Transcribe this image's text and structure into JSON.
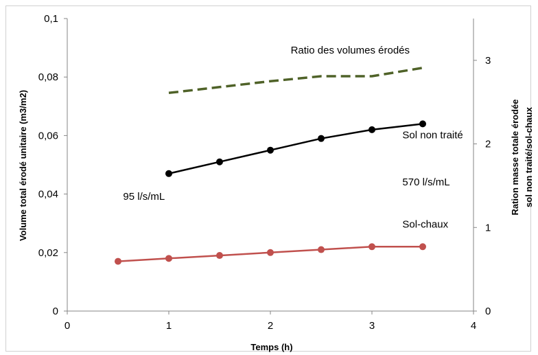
{
  "chart_data": {
    "type": "line",
    "xlabel": "Temps (h)",
    "ylabel": "Volume total érodé unitaire (m3/m2)",
    "y2label_line1": "Ration masse totale érodée",
    "y2label_line2": "sol non traité/sol-chaux",
    "xlim": [
      0,
      4
    ],
    "ylim": [
      0,
      0.1
    ],
    "y2lim": [
      0,
      3.5
    ],
    "x_ticks": [
      "0",
      "1",
      "2",
      "3",
      "4"
    ],
    "y_ticks": [
      "0",
      "0,02",
      "0,04",
      "0,06",
      "0,08",
      "0,1"
    ],
    "y2_ticks": [
      "0",
      "1",
      "2",
      "3"
    ],
    "grid": false,
    "series": [
      {
        "name": "Sol non traité",
        "axis": "left",
        "color": "#000000",
        "markers": true,
        "dash": false,
        "x": [
          1,
          1.5,
          2,
          2.5,
          3,
          3.5
        ],
        "y": [
          0.047,
          0.051,
          0.055,
          0.059,
          0.062,
          0.064
        ]
      },
      {
        "name": "Sol-chaux",
        "axis": "left",
        "color": "#c0504d",
        "markers": true,
        "dash": false,
        "x": [
          0.5,
          1,
          1.5,
          2,
          2.5,
          3,
          3.5
        ],
        "y": [
          0.017,
          0.018,
          0.019,
          0.02,
          0.021,
          0.022,
          0.022
        ]
      },
      {
        "name": "Ratio des volumes érodés",
        "axis": "right",
        "color": "#4f6228",
        "markers": false,
        "dash": true,
        "x": [
          1,
          1.5,
          2,
          2.5,
          3,
          3.5
        ],
        "y": [
          2.61,
          2.68,
          2.75,
          2.81,
          2.81,
          2.91
        ]
      }
    ],
    "annotations": [
      {
        "text": "Ratio des volumes érodés",
        "x": 2.2,
        "y": 0.088
      },
      {
        "text": "Sol non traité",
        "x": 3.3,
        "y": 0.059
      },
      {
        "text": "570 l/s/mL",
        "x": 3.3,
        "y": 0.043
      },
      {
        "text": "95 l/s/mL",
        "x": 0.55,
        "y": 0.038
      },
      {
        "text": "Sol-chaux",
        "x": 3.3,
        "y": 0.0285
      }
    ]
  }
}
